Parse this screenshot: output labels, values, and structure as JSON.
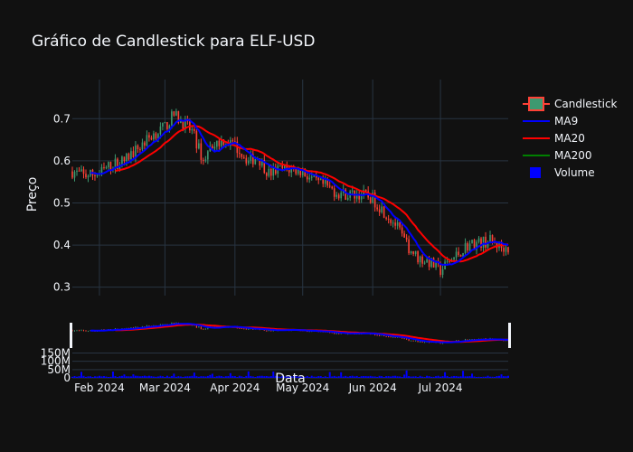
{
  "chart_data": {
    "type": "candlestick",
    "title": "Gráfico de Candlestick para ELF-USD",
    "xlabel": "Data",
    "ylabel": "Preço",
    "ylim": [
      0.28,
      0.75
    ],
    "yticks": [
      0.3,
      0.4,
      0.5,
      0.6,
      0.7
    ],
    "ytick_labels": [
      "0.3",
      "0.4",
      "0.5",
      "0.6",
      "0.7"
    ],
    "xticks": [
      "2024-02-01",
      "2024-03-01",
      "2024-04-01",
      "2024-05-01",
      "2024-06-01",
      "2024-07-01"
    ],
    "xtick_labels": [
      "Feb 2024",
      "Mar 2024",
      "Apr 2024",
      "May 2024",
      "Jun 2024",
      "Jul 2024"
    ],
    "xlim": [
      "2024-01-20",
      "2024-07-31"
    ],
    "anchors": [
      [
        "2024-01-20",
        0.575
      ],
      [
        "2024-01-25",
        0.565
      ],
      [
        "2024-02-01",
        0.57
      ],
      [
        "2024-02-06",
        0.59
      ],
      [
        "2024-02-12",
        0.6
      ],
      [
        "2024-02-18",
        0.63
      ],
      [
        "2024-02-24",
        0.66
      ],
      [
        "2024-03-01",
        0.68
      ],
      [
        "2024-03-05",
        0.71
      ],
      [
        "2024-03-09",
        0.69
      ],
      [
        "2024-03-13",
        0.67
      ],
      [
        "2024-03-18",
        0.6
      ],
      [
        "2024-03-22",
        0.64
      ],
      [
        "2024-03-27",
        0.65
      ],
      [
        "2024-04-02",
        0.63
      ],
      [
        "2024-04-07",
        0.6
      ],
      [
        "2024-04-11",
        0.61
      ],
      [
        "2024-04-16",
        0.57
      ],
      [
        "2024-04-21",
        0.58
      ],
      [
        "2024-04-26",
        0.58
      ],
      [
        "2024-05-01",
        0.575
      ],
      [
        "2024-05-06",
        0.55
      ],
      [
        "2024-05-11",
        0.54
      ],
      [
        "2024-05-16",
        0.525
      ],
      [
        "2024-05-21",
        0.52
      ],
      [
        "2024-05-27",
        0.52
      ],
      [
        "2024-06-01",
        0.51
      ],
      [
        "2024-06-06",
        0.48
      ],
      [
        "2024-06-11",
        0.45
      ],
      [
        "2024-06-16",
        0.4
      ],
      [
        "2024-06-21",
        0.37
      ],
      [
        "2024-06-26",
        0.36
      ],
      [
        "2024-07-01",
        0.34
      ],
      [
        "2024-07-05",
        0.36
      ],
      [
        "2024-07-09",
        0.38
      ],
      [
        "2024-07-13",
        0.4
      ],
      [
        "2024-07-18",
        0.405
      ],
      [
        "2024-07-23",
        0.41
      ],
      [
        "2024-07-28",
        0.395
      ]
    ],
    "volume_ticks": [
      0,
      50,
      100,
      150
    ],
    "volume_tick_labels": [
      "0",
      "50M",
      "100M",
      "150M"
    ],
    "volume_ylim": [
      0,
      180
    ],
    "series": [
      {
        "name": "Candlestick",
        "color_up": "#3D9970",
        "color_down": "#FF4136"
      },
      {
        "name": "MA9",
        "color": "#0000ff"
      },
      {
        "name": "MA20",
        "color": "#ff0000"
      },
      {
        "name": "MA200",
        "color": "#008000"
      },
      {
        "name": "Volume",
        "color": "#0000ff"
      }
    ],
    "legend_position": "top-right",
    "grid": true
  }
}
